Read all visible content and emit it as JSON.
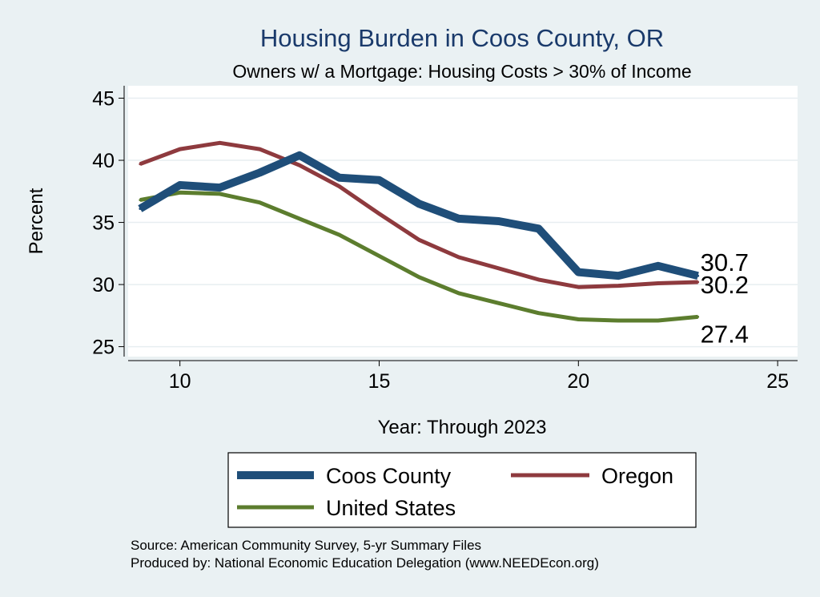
{
  "chart_data": {
    "type": "line",
    "title": "Housing Burden in Coos County, OR",
    "subtitle": "Owners w/ a Mortgage: Housing Costs > 30% of Income",
    "xlabel": "Year: Through 2023",
    "ylabel": "Percent",
    "xlim": [
      8.7,
      25.5
    ],
    "ylim": [
      24.2,
      46.0
    ],
    "xticks": [
      10,
      15,
      20,
      25
    ],
    "yticks": [
      25,
      30,
      35,
      40,
      45
    ],
    "grid": true,
    "series": [
      {
        "name": "Coos County",
        "color": "#1f4e79",
        "x": [
          9,
          10,
          11,
          12,
          13,
          14,
          15,
          16,
          17,
          18,
          19,
          20,
          21,
          22,
          23
        ],
        "values": [
          36.1,
          38.0,
          37.8,
          39.0,
          40.4,
          38.6,
          38.4,
          36.5,
          35.3,
          35.1,
          34.5,
          31.0,
          30.7,
          31.5,
          30.7
        ],
        "end_label": "30.7"
      },
      {
        "name": "Oregon",
        "color": "#8e3a3e",
        "x": [
          9,
          10,
          11,
          12,
          13,
          14,
          15,
          16,
          17,
          18,
          19,
          20,
          21,
          22,
          23
        ],
        "values": [
          39.7,
          40.9,
          41.4,
          40.9,
          39.6,
          37.9,
          35.7,
          33.6,
          32.2,
          31.3,
          30.4,
          29.8,
          29.9,
          30.1,
          30.2
        ],
        "end_label": "30.2"
      },
      {
        "name": "United States",
        "color": "#5c7d2e",
        "x": [
          9,
          10,
          11,
          12,
          13,
          14,
          15,
          16,
          17,
          18,
          19,
          20,
          21,
          22,
          23
        ],
        "values": [
          36.8,
          37.4,
          37.3,
          36.6,
          35.3,
          34.0,
          32.3,
          30.6,
          29.3,
          28.5,
          27.7,
          27.2,
          27.1,
          27.1,
          27.4
        ],
        "end_label": "27.4"
      }
    ],
    "legend": {
      "placement": "bottom",
      "items": [
        "Coos County",
        "Oregon",
        "United States"
      ]
    },
    "notes": [
      "Source: American Community Survey, 5-yr Summary Files",
      "Produced by: National Economic Education Delegation (www.NEEDEcon.org)"
    ]
  }
}
